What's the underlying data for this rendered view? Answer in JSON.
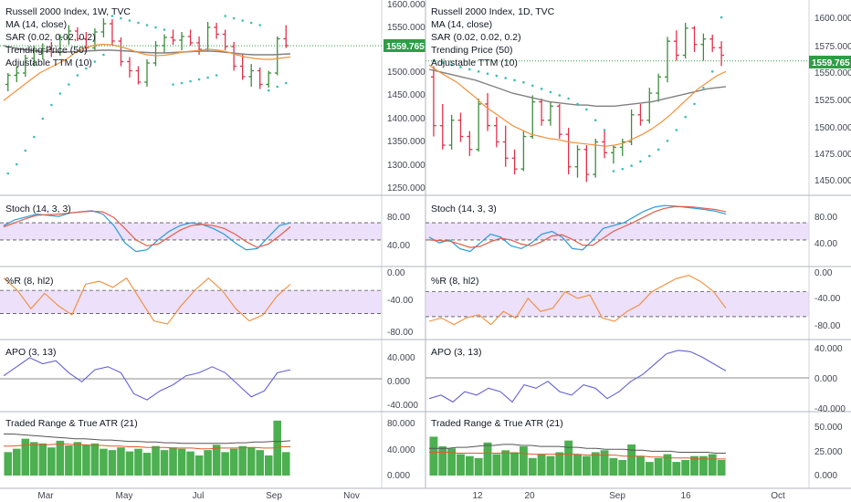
{
  "colors": {
    "up": "#26a69a",
    "upBar": "#3d8c3d",
    "down": "#e0314b",
    "ma": "#f2913b",
    "trend": "#808080",
    "sar": "#3bbfb2",
    "stochK": "#2a9bd8",
    "stochD": "#e35d4a",
    "wr": "#f28c38",
    "apo": "#6461d6",
    "band": "#e6d6f8",
    "volBar": "#4caf50",
    "atr": "#e05a2a",
    "trLine": "#555555",
    "priceLine": "#2e9e46",
    "grid": "#e8e8ee"
  },
  "price_badge": "1559.765",
  "charts": [
    {
      "id": "weekly",
      "title": "Russell 2000 Index, 1W, TVC",
      "indicators": [
        "MA (14, close)",
        "SAR (0.02, 0.02, 0.2)",
        "Trending Price (50)",
        "Adjustable TTM (10)"
      ],
      "price_ticks": [
        "1600.000",
        "1550.000",
        "1500.000",
        "1450.000",
        "1400.000",
        "1350.000",
        "1300.000",
        "1250.000"
      ],
      "x_ticks": [
        "Mar",
        "May",
        "Jul",
        "Sep",
        "Nov"
      ],
      "stoch_title": "Stoch (14, 3, 3)",
      "stoch_ticks": [
        "80.00",
        "40.00"
      ],
      "wr_title": "%R (8, hl2)",
      "wr_ticks": [
        "0.00",
        "-40.00",
        "-80.00"
      ],
      "apo_title": "APO (3, 13)",
      "apo_ticks": [
        "40.000",
        "0.000",
        "-40.000"
      ],
      "vol_title": "Traded Range & True ATR (21)",
      "vol_ticks": [
        "80.000",
        "40.000",
        "0.000"
      ]
    },
    {
      "id": "daily",
      "title": "Russell 2000 Index, 1D, TVC",
      "indicators": [
        "MA (14, close)",
        "SAR (0.02, 0.02, 0.2)",
        "Trending Price (50)",
        "Adjustable TTM (10)"
      ],
      "price_ticks": [
        "1600.000",
        "1575.000",
        "1550.000",
        "1525.000",
        "1500.000",
        "1475.000",
        "1450.000"
      ],
      "x_ticks": [
        "12",
        "20",
        "Sep",
        "16",
        "Oct"
      ],
      "stoch_title": "Stoch (14, 3, 3)",
      "stoch_ticks": [
        "80.00",
        "40.00"
      ],
      "wr_title": "%R (8, hl2)",
      "wr_ticks": [
        "0.00",
        "-40.00",
        "-80.00"
      ],
      "apo_title": "APO (3, 13)",
      "apo_ticks": [
        "40.000",
        "0.000",
        "-40.000"
      ],
      "vol_title": "Traded Range & True ATR (21)",
      "vol_ticks": [
        "50.000",
        "25.000",
        "0.000"
      ]
    }
  ],
  "chart_data": [
    {
      "type": "ohlc",
      "title": "Russell 2000 Index, 1W, TVC",
      "x_ticks": [
        "Mar",
        "May",
        "Jul",
        "Sep",
        "Nov"
      ],
      "ylim": [
        1230,
        1660
      ],
      "last_price": 1559.765,
      "ohlc": [
        [
          1475,
          1500,
          1460,
          1495
        ],
        [
          1495,
          1515,
          1480,
          1500
        ],
        [
          1500,
          1540,
          1492,
          1532
        ],
        [
          1532,
          1560,
          1515,
          1548
        ],
        [
          1548,
          1565,
          1530,
          1553
        ],
        [
          1553,
          1568,
          1535,
          1545
        ],
        [
          1545,
          1585,
          1538,
          1578
        ],
        [
          1578,
          1605,
          1562,
          1592
        ],
        [
          1592,
          1600,
          1570,
          1575
        ],
        [
          1575,
          1590,
          1545,
          1555
        ],
        [
          1555,
          1598,
          1548,
          1590
        ],
        [
          1590,
          1620,
          1578,
          1608
        ],
        [
          1608,
          1618,
          1560,
          1570
        ],
        [
          1570,
          1578,
          1515,
          1525
        ],
        [
          1525,
          1535,
          1490,
          1505
        ],
        [
          1505,
          1515,
          1475,
          1480
        ],
        [
          1480,
          1530,
          1470,
          1522
        ],
        [
          1522,
          1570,
          1515,
          1560
        ],
        [
          1560,
          1585,
          1545,
          1578
        ],
        [
          1578,
          1595,
          1562,
          1572
        ],
        [
          1572,
          1590,
          1550,
          1580
        ],
        [
          1580,
          1595,
          1560,
          1566
        ],
        [
          1566,
          1580,
          1540,
          1552
        ],
        [
          1552,
          1612,
          1548,
          1600
        ],
        [
          1600,
          1610,
          1575,
          1585
        ],
        [
          1585,
          1595,
          1550,
          1558
        ],
        [
          1558,
          1568,
          1505,
          1515
        ],
        [
          1515,
          1540,
          1485,
          1492
        ],
        [
          1492,
          1520,
          1470,
          1505
        ],
        [
          1505,
          1512,
          1465,
          1475
        ],
        [
          1475,
          1505,
          1468,
          1500
        ],
        [
          1500,
          1580,
          1495,
          1575
        ],
        [
          1575,
          1605,
          1555,
          1560
        ]
      ],
      "ma": [
        1440,
        1455,
        1470,
        1485,
        1500,
        1510,
        1520,
        1530,
        1545,
        1555,
        1560,
        1563,
        1562,
        1558,
        1552,
        1545,
        1540,
        1538,
        1539,
        1542,
        1546,
        1548,
        1550,
        1552,
        1550,
        1546,
        1540,
        1535,
        1532,
        1530,
        1530,
        1533,
        1535
      ],
      "trending": [
        1560,
        1556,
        1552,
        1550,
        1548,
        1547,
        1546,
        1546,
        1547,
        1548,
        1549,
        1550,
        1550,
        1549,
        1548,
        1546,
        1545,
        1544,
        1544,
        1545,
        1546,
        1547,
        1548,
        1548,
        1547,
        1545,
        1543,
        1541,
        1540,
        1540,
        1540,
        1541,
        1542
      ],
      "sar": [
        1280,
        1300,
        1330,
        1360,
        1400,
        1430,
        1455,
        1475,
        1495,
        1510,
        1525,
        1540,
        1625,
        1620,
        1615,
        1610,
        1605,
        1600,
        1595,
        1475,
        1478,
        1482,
        1486,
        1490,
        1495,
        1625,
        1620,
        1615,
        1610,
        1605,
        1462,
        1470,
        1478
      ],
      "stoch_k": [
        60,
        70,
        75,
        80,
        78,
        76,
        82,
        84,
        86,
        80,
        60,
        30,
        15,
        18,
        35,
        50,
        60,
        65,
        62,
        55,
        45,
        30,
        18,
        20,
        40,
        60,
        65
      ],
      "stoch_d": [
        58,
        65,
        72,
        78,
        79,
        80,
        82,
        84,
        85,
        84,
        74,
        55,
        35,
        25,
        28,
        40,
        52,
        60,
        62,
        60,
        55,
        45,
        32,
        22,
        28,
        42,
        58
      ],
      "wr": [
        -10,
        -30,
        -60,
        -35,
        -55,
        -70,
        -20,
        -15,
        -25,
        -10,
        -45,
        -80,
        -85,
        -55,
        -30,
        -10,
        -30,
        -60,
        -80,
        -70,
        -40,
        -20
      ],
      "apo": [
        5,
        20,
        35,
        25,
        30,
        10,
        -5,
        15,
        20,
        10,
        -25,
        -35,
        -20,
        -10,
        5,
        10,
        20,
        10,
        -10,
        -30,
        -20,
        10,
        15
      ],
      "traded_range": [
        35,
        40,
        55,
        50,
        48,
        42,
        52,
        45,
        50,
        46,
        48,
        40,
        38,
        42,
        36,
        40,
        34,
        44,
        38,
        42,
        40,
        36,
        30,
        38,
        46,
        35,
        40,
        44,
        42,
        38,
        30,
        82,
        35
      ],
      "true_atr": [
        44,
        44,
        45,
        46,
        46,
        46,
        47,
        47,
        46,
        46,
        45,
        45,
        44,
        44,
        43,
        43,
        42,
        42,
        42,
        41,
        41,
        41,
        40,
        40,
        41,
        41,
        41,
        42,
        42,
        41,
        41,
        43,
        43
      ],
      "tr_line": [
        62,
        62,
        61,
        60,
        59,
        58,
        57,
        56,
        55,
        55,
        54,
        53,
        53,
        52,
        51,
        51,
        50,
        50,
        49,
        49,
        48,
        48,
        48,
        48,
        48,
        48,
        49,
        49,
        50,
        50,
        51,
        51,
        52
      ]
    },
    {
      "type": "ohlc",
      "title": "Russell 2000 Index, 1D, TVC",
      "x_ticks": [
        "12",
        "20",
        "Sep",
        "16",
        "Oct"
      ],
      "ylim": [
        1435,
        1612
      ],
      "last_price": 1559.765,
      "ohlc": [
        [
          1545,
          1555,
          1490,
          1500
        ],
        [
          1500,
          1520,
          1478,
          1482
        ],
        [
          1482,
          1510,
          1478,
          1505
        ],
        [
          1505,
          1512,
          1485,
          1490
        ],
        [
          1490,
          1495,
          1472,
          1478
        ],
        [
          1478,
          1525,
          1476,
          1520
        ],
        [
          1520,
          1530,
          1495,
          1500
        ],
        [
          1500,
          1508,
          1480,
          1485
        ],
        [
          1485,
          1500,
          1462,
          1470
        ],
        [
          1470,
          1478,
          1455,
          1460
        ],
        [
          1460,
          1495,
          1458,
          1490
        ],
        [
          1490,
          1528,
          1488,
          1522
        ],
        [
          1522,
          1525,
          1500,
          1505
        ],
        [
          1505,
          1522,
          1500,
          1518
        ],
        [
          1518,
          1520,
          1488,
          1492
        ],
        [
          1492,
          1498,
          1455,
          1462
        ],
        [
          1462,
          1482,
          1452,
          1478
        ],
        [
          1478,
          1482,
          1448,
          1455
        ],
        [
          1455,
          1488,
          1452,
          1485
        ],
        [
          1485,
          1495,
          1470,
          1475
        ],
        [
          1475,
          1482,
          1465,
          1480
        ],
        [
          1480,
          1488,
          1472,
          1485
        ],
        [
          1485,
          1515,
          1482,
          1510
        ],
        [
          1510,
          1520,
          1500,
          1505
        ],
        [
          1505,
          1535,
          1502,
          1530
        ],
        [
          1530,
          1548,
          1522,
          1545
        ],
        [
          1545,
          1582,
          1540,
          1578
        ],
        [
          1578,
          1588,
          1560,
          1565
        ],
        [
          1565,
          1595,
          1562,
          1590
        ],
        [
          1590,
          1592,
          1568,
          1575
        ],
        [
          1575,
          1585,
          1560,
          1580
        ],
        [
          1580,
          1584,
          1568,
          1572
        ],
        [
          1572,
          1578,
          1555,
          1565
        ]
      ],
      "ma": [
        1556,
        1550,
        1545,
        1540,
        1533,
        1526,
        1518,
        1512,
        1506,
        1500,
        1496,
        1492,
        1490,
        1488,
        1487,
        1485,
        1484,
        1483,
        1482,
        1481,
        1482,
        1484,
        1488,
        1492,
        1497,
        1503,
        1510,
        1518,
        1526,
        1534,
        1540,
        1546,
        1550
      ],
      "trending": [
        1552,
        1550,
        1548,
        1546,
        1544,
        1542,
        1539,
        1536,
        1533,
        1530,
        1528,
        1526,
        1524,
        1522,
        1521,
        1520,
        1519,
        1519,
        1518,
        1518,
        1518,
        1519,
        1520,
        1521,
        1522,
        1524,
        1526,
        1528,
        1530,
        1532,
        1534,
        1535,
        1536
      ],
      "sar": [
        1560,
        1558,
        1556,
        1554,
        1552,
        1550,
        1548,
        1546,
        1544,
        1542,
        1540,
        1537,
        1534,
        1531,
        1528,
        1525,
        1520,
        1515,
        1505,
        1496,
        1458,
        1460,
        1463,
        1467,
        1472,
        1478,
        1486,
        1496,
        1508,
        1520,
        1535,
        1550,
        1600
      ],
      "stoch_k": [
        40,
        30,
        35,
        20,
        15,
        30,
        45,
        40,
        25,
        20,
        30,
        45,
        50,
        40,
        20,
        18,
        35,
        55,
        60,
        65,
        75,
        85,
        92,
        95,
        94,
        92,
        90,
        88,
        85,
        80
      ],
      "stoch_d": [
        35,
        34,
        33,
        28,
        22,
        24,
        32,
        38,
        35,
        28,
        25,
        32,
        42,
        44,
        36,
        26,
        26,
        38,
        50,
        58,
        66,
        75,
        84,
        90,
        93,
        93,
        92,
        90,
        88,
        84
      ],
      "wr": [
        -75,
        -70,
        -80,
        -70,
        -65,
        -80,
        -60,
        -70,
        -40,
        -60,
        -55,
        -30,
        -40,
        -35,
        -70,
        -75,
        -60,
        -50,
        -30,
        -20,
        -10,
        -5,
        -15,
        -30,
        -55
      ],
      "apo": [
        -30,
        -25,
        -35,
        -20,
        -25,
        -15,
        -20,
        -35,
        -10,
        -15,
        -5,
        -20,
        -25,
        -10,
        -15,
        -30,
        -20,
        -5,
        5,
        20,
        35,
        40,
        38,
        30,
        20,
        10
      ],
      "traded_range": [
        40,
        30,
        28,
        22,
        20,
        18,
        34,
        22,
        26,
        24,
        30,
        18,
        22,
        20,
        24,
        36,
        22,
        20,
        24,
        26,
        18,
        16,
        32,
        20,
        14,
        18,
        22,
        14,
        16,
        20,
        20,
        22,
        16
      ],
      "true_atr": [
        24,
        24,
        24,
        23,
        23,
        23,
        23,
        23,
        23,
        23,
        23,
        22,
        22,
        22,
        22,
        22,
        22,
        21,
        21,
        21,
        21,
        20,
        20,
        20,
        19,
        19,
        18,
        18,
        18,
        17,
        17,
        17,
        17
      ],
      "tr_line": [
        28,
        28,
        28,
        29,
        29,
        30,
        31,
        31,
        32,
        32,
        31,
        31,
        30,
        30,
        30,
        29,
        29,
        28,
        28,
        27,
        27,
        27,
        26,
        26,
        25,
        25,
        25,
        24,
        24,
        24,
        24,
        23,
        23
      ]
    }
  ]
}
